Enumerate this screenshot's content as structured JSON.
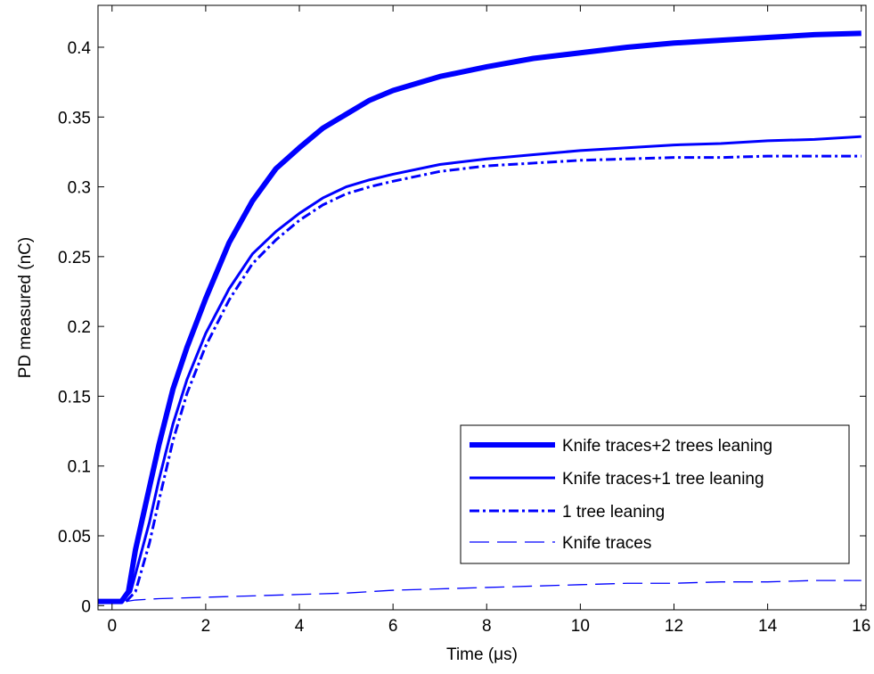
{
  "chart_data": {
    "type": "line",
    "title": "",
    "xlabel": "Time (μs)",
    "ylabel": "PD measured (nC)",
    "xlim": [
      -0.3,
      16.1
    ],
    "ylim": [
      -0.003,
      0.43
    ],
    "x_ticks": [
      0,
      2,
      4,
      6,
      8,
      10,
      12,
      14,
      16
    ],
    "y_ticks": [
      0,
      0.05,
      0.1,
      0.15,
      0.2,
      0.25,
      0.3,
      0.35,
      0.4
    ],
    "x_tick_labels": [
      "0",
      "2",
      "4",
      "6",
      "8",
      "10",
      "12",
      "14",
      "16"
    ],
    "y_tick_labels": [
      "0",
      "0.05",
      "0.1",
      "0.15",
      "0.2",
      "0.25",
      "0.3",
      "0.35",
      "0.4"
    ],
    "grid": false,
    "legend_position": "bottom-right",
    "series": [
      {
        "name": "Knife traces+2 trees leaning",
        "color": "#0000ff",
        "style": "thick-solid",
        "x": [
          -0.3,
          0.2,
          0.35,
          0.5,
          0.7,
          1.0,
          1.3,
          1.6,
          2.0,
          2.5,
          3.0,
          3.5,
          4.0,
          4.5,
          5.0,
          5.5,
          6.0,
          7.0,
          8.0,
          9.0,
          10.0,
          11.0,
          12.0,
          13.0,
          14.0,
          15.0,
          16.0
        ],
        "y": [
          0.003,
          0.003,
          0.01,
          0.04,
          0.07,
          0.115,
          0.155,
          0.185,
          0.22,
          0.26,
          0.29,
          0.313,
          0.328,
          0.342,
          0.352,
          0.362,
          0.369,
          0.379,
          0.386,
          0.392,
          0.396,
          0.4,
          0.403,
          0.405,
          0.407,
          0.409,
          0.41
        ]
      },
      {
        "name": "Knife traces+1 tree leaning",
        "color": "#0000ff",
        "style": "solid",
        "x": [
          -0.3,
          0.2,
          0.4,
          0.6,
          0.8,
          1.0,
          1.3,
          1.6,
          2.0,
          2.5,
          3.0,
          3.5,
          4.0,
          4.5,
          5.0,
          5.5,
          6.0,
          7.0,
          8.0,
          9.0,
          10.0,
          11.0,
          12.0,
          13.0,
          14.0,
          15.0,
          16.0
        ],
        "y": [
          0.003,
          0.003,
          0.01,
          0.035,
          0.06,
          0.09,
          0.13,
          0.162,
          0.195,
          0.227,
          0.252,
          0.268,
          0.281,
          0.292,
          0.3,
          0.305,
          0.309,
          0.316,
          0.32,
          0.323,
          0.326,
          0.328,
          0.33,
          0.331,
          0.333,
          0.334,
          0.336
        ]
      },
      {
        "name": "1 tree leaning",
        "color": "#0000ff",
        "style": "dash-dot",
        "x": [
          0.3,
          0.5,
          0.8,
          1.0,
          1.3,
          1.6,
          2.0,
          2.5,
          3.0,
          3.5,
          4.0,
          4.5,
          5.0,
          5.5,
          6.0,
          7.0,
          8.0,
          9.0,
          10.0,
          11.0,
          12.0,
          13.0,
          14.0,
          15.0,
          16.0
        ],
        "y": [
          0.003,
          0.01,
          0.045,
          0.075,
          0.118,
          0.152,
          0.186,
          0.219,
          0.245,
          0.262,
          0.276,
          0.287,
          0.295,
          0.3,
          0.304,
          0.311,
          0.315,
          0.317,
          0.319,
          0.32,
          0.321,
          0.321,
          0.322,
          0.322,
          0.322
        ]
      },
      {
        "name": "Knife traces",
        "color": "#0000ff",
        "style": "long-dash",
        "x": [
          0.3,
          0.5,
          1.0,
          2.0,
          3.0,
          4.0,
          5.0,
          6.0,
          7.0,
          8.0,
          9.0,
          10.0,
          11.0,
          12.0,
          13.0,
          14.0,
          15.0,
          16.0
        ],
        "y": [
          0.003,
          0.004,
          0.005,
          0.006,
          0.007,
          0.008,
          0.009,
          0.011,
          0.012,
          0.013,
          0.014,
          0.015,
          0.016,
          0.016,
          0.017,
          0.017,
          0.018,
          0.018
        ]
      }
    ]
  }
}
